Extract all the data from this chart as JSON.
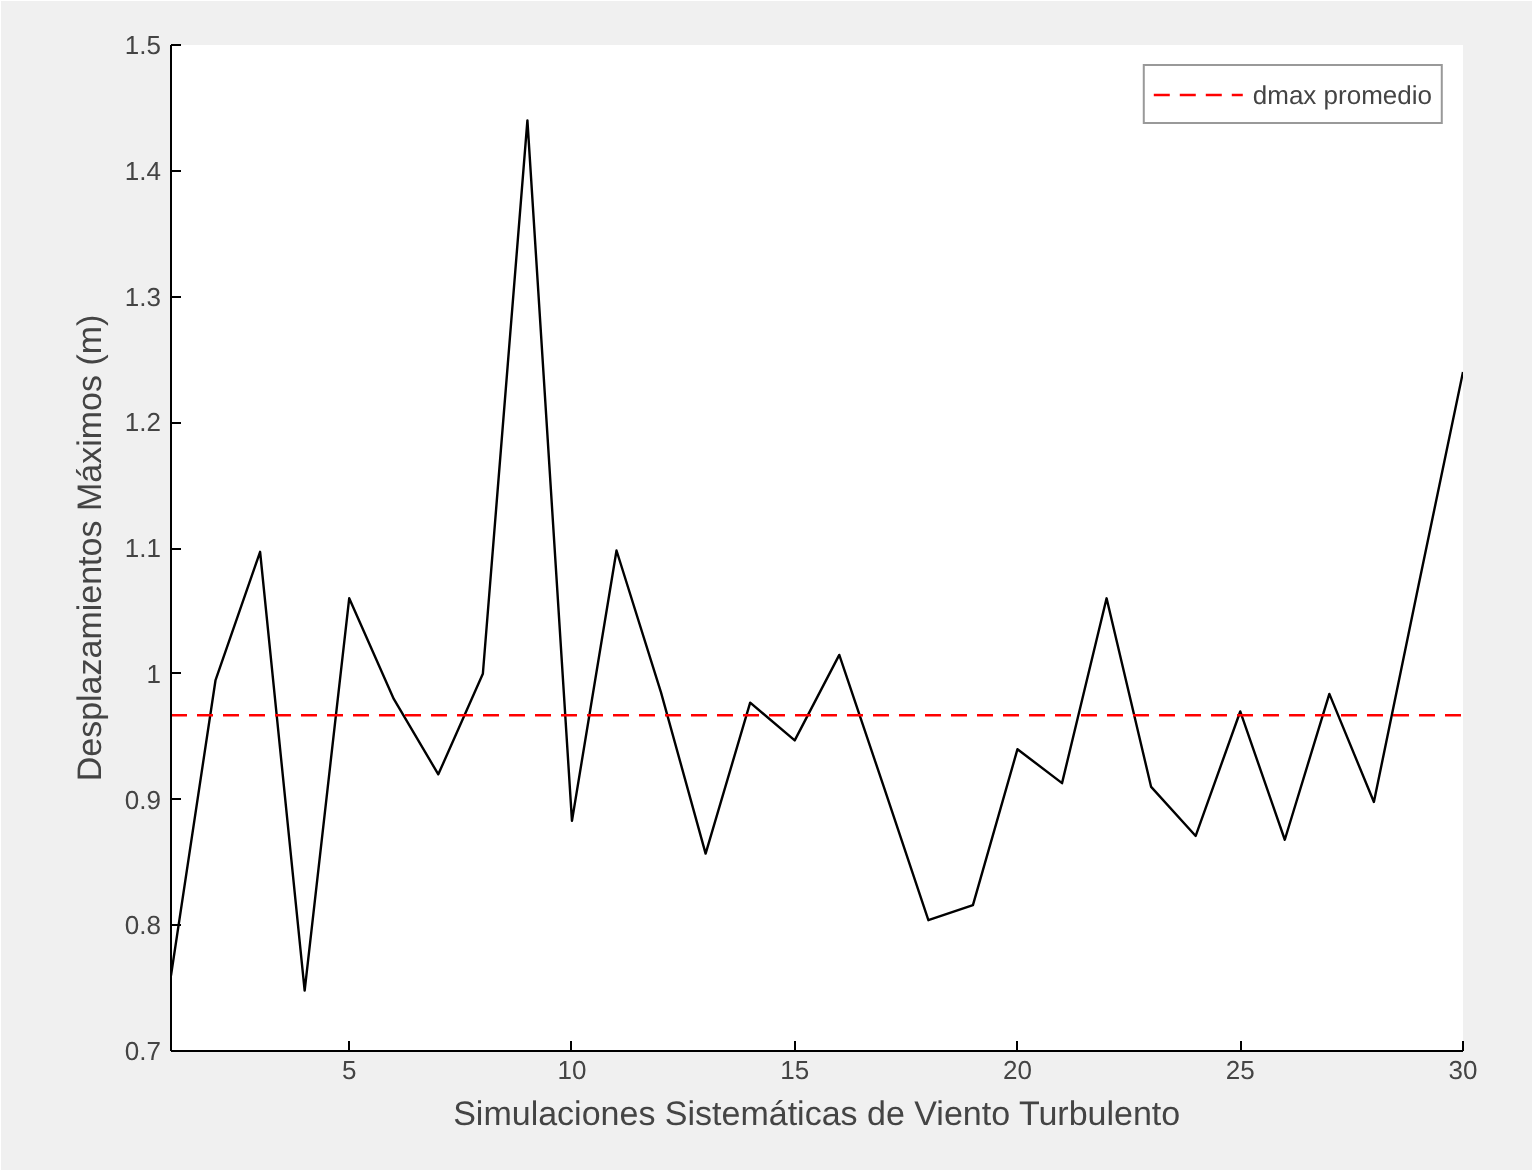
{
  "chart_data": {
    "type": "line",
    "xlabel": "Simulaciones Sistemáticas de Viento Turbulento",
    "ylabel": "Desplazamientos Máximos (m)",
    "x": [
      1,
      2,
      3,
      4,
      5,
      6,
      7,
      8,
      9,
      10,
      11,
      12,
      13,
      14,
      15,
      16,
      17,
      18,
      19,
      20,
      21,
      22,
      23,
      24,
      25,
      26,
      27,
      28,
      29,
      30
    ],
    "series": [
      {
        "color": "#000000",
        "values": [
          0.76,
          0.995,
          1.097,
          0.748,
          1.06,
          0.98,
          0.92,
          1.0,
          1.44,
          0.883,
          1.098,
          0.985,
          0.857,
          0.977,
          0.947,
          1.015,
          0.91,
          0.804,
          0.816,
          0.94,
          0.913,
          1.06,
          0.91,
          0.871,
          0.97,
          0.868,
          0.984,
          0.898,
          1.07,
          1.24
        ]
      }
    ],
    "ref_lines": [
      {
        "axis": "y",
        "value": 0.967,
        "label": "dmax promedio",
        "color": "#ff0000",
        "line_style": "dashed"
      }
    ],
    "xlim": [
      1,
      30
    ],
    "ylim": [
      0.7,
      1.5
    ],
    "xticks": [
      5,
      10,
      15,
      20,
      25,
      30
    ],
    "yticks": [
      0.7,
      0.8,
      0.9,
      1,
      1.1,
      1.2,
      1.3,
      1.4,
      1.5
    ],
    "grid": false,
    "legend": "top right",
    "marker": "none",
    "line_style": "solid"
  }
}
